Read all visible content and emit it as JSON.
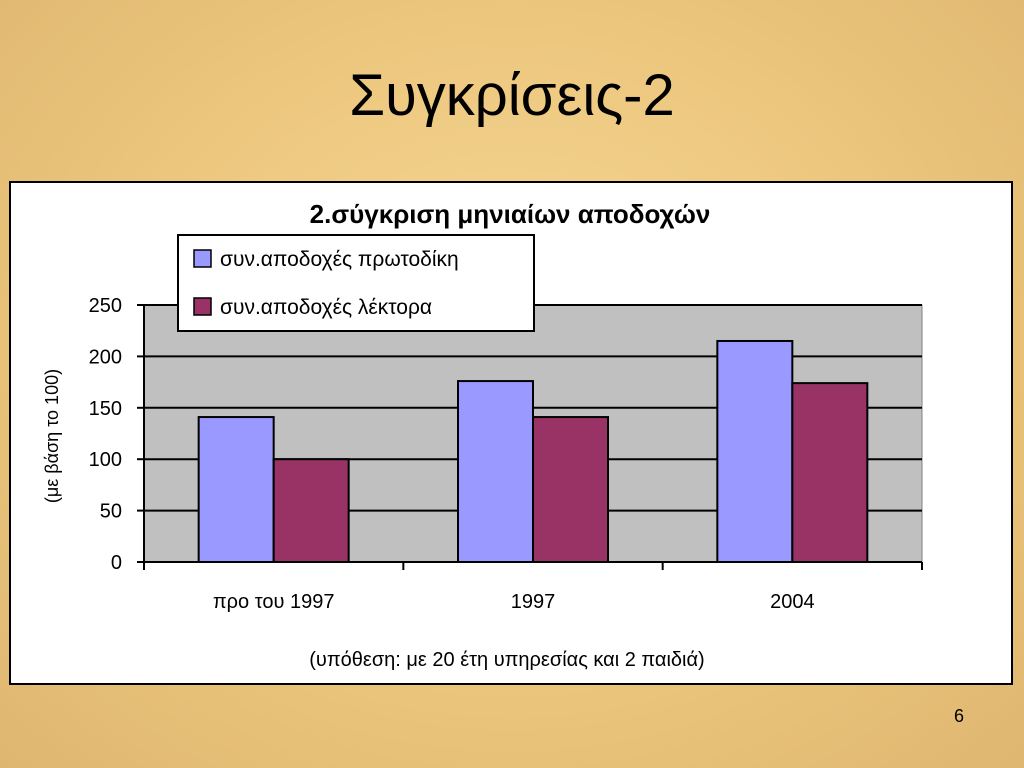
{
  "slide": {
    "title": "Συγκρίσεις-2",
    "page_number": "6"
  },
  "chart_data": {
    "type": "bar",
    "title": "2.σύγκριση μηνιαίων αποδοχών",
    "ylabel": "(με βάση το 100)",
    "xlabel": "(υπόθεση: με 20 έτη υπηρεσίας και 2 παιδιά)",
    "categories": [
      "προ του 1997",
      "1997",
      "2004"
    ],
    "series": [
      {
        "name": "συν.αποδοχές πρωτοδίκη",
        "values": [
          141,
          176,
          215
        ],
        "color": "#9999ff"
      },
      {
        "name": "συν.αποδοχές λέκτορα",
        "values": [
          100,
          141,
          174
        ],
        "color": "#993366"
      }
    ],
    "ylim": [
      0,
      250
    ],
    "yticks": [
      "0",
      "50",
      "100",
      "150",
      "200",
      "250"
    ],
    "grid": true,
    "legend": "top-left",
    "plot_background": "#c0c0c0"
  }
}
